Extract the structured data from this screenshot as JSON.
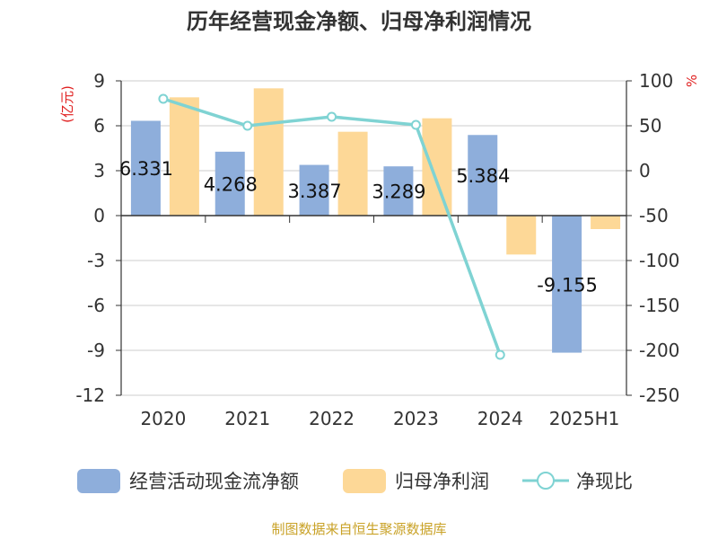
{
  "chart_data": {
    "type": "bar",
    "title": "历年经营现金净额、归母净利润情况",
    "left_unit": "(亿元)",
    "right_unit": "%",
    "categories": [
      "2020",
      "2021",
      "2022",
      "2023",
      "2024",
      "2025H1"
    ],
    "left_ticks": [
      "9",
      "6",
      "3",
      "0",
      "-3",
      "-6",
      "-9",
      "-12"
    ],
    "right_ticks": [
      "100",
      "50",
      "0",
      "-50",
      "-100",
      "-150",
      "-200",
      "-250"
    ],
    "ylim_left": [
      -12,
      9
    ],
    "ylim_right": [
      -250,
      100
    ],
    "series": [
      {
        "name": "经营活动现金流净额",
        "type": "bar",
        "axis": "left",
        "color": "#8eaedb",
        "values": [
          6.331,
          4.268,
          3.387,
          3.289,
          5.384,
          -9.155
        ],
        "labels": [
          "6.331",
          "4.268",
          "3.387",
          "3.289",
          "5.384",
          "-9.155"
        ]
      },
      {
        "name": "归母净利润",
        "type": "bar",
        "axis": "left",
        "color": "#fdd897",
        "values": [
          7.9,
          8.5,
          5.6,
          6.5,
          -2.6,
          -0.9
        ]
      },
      {
        "name": "净现比",
        "type": "line",
        "axis": "right",
        "color": "#7fd3d3",
        "values": [
          80,
          50,
          60,
          51,
          -205,
          null
        ]
      }
    ],
    "legend_position": "bottom",
    "grid": true
  },
  "source_text": "制图数据来自恒生聚源数据库"
}
